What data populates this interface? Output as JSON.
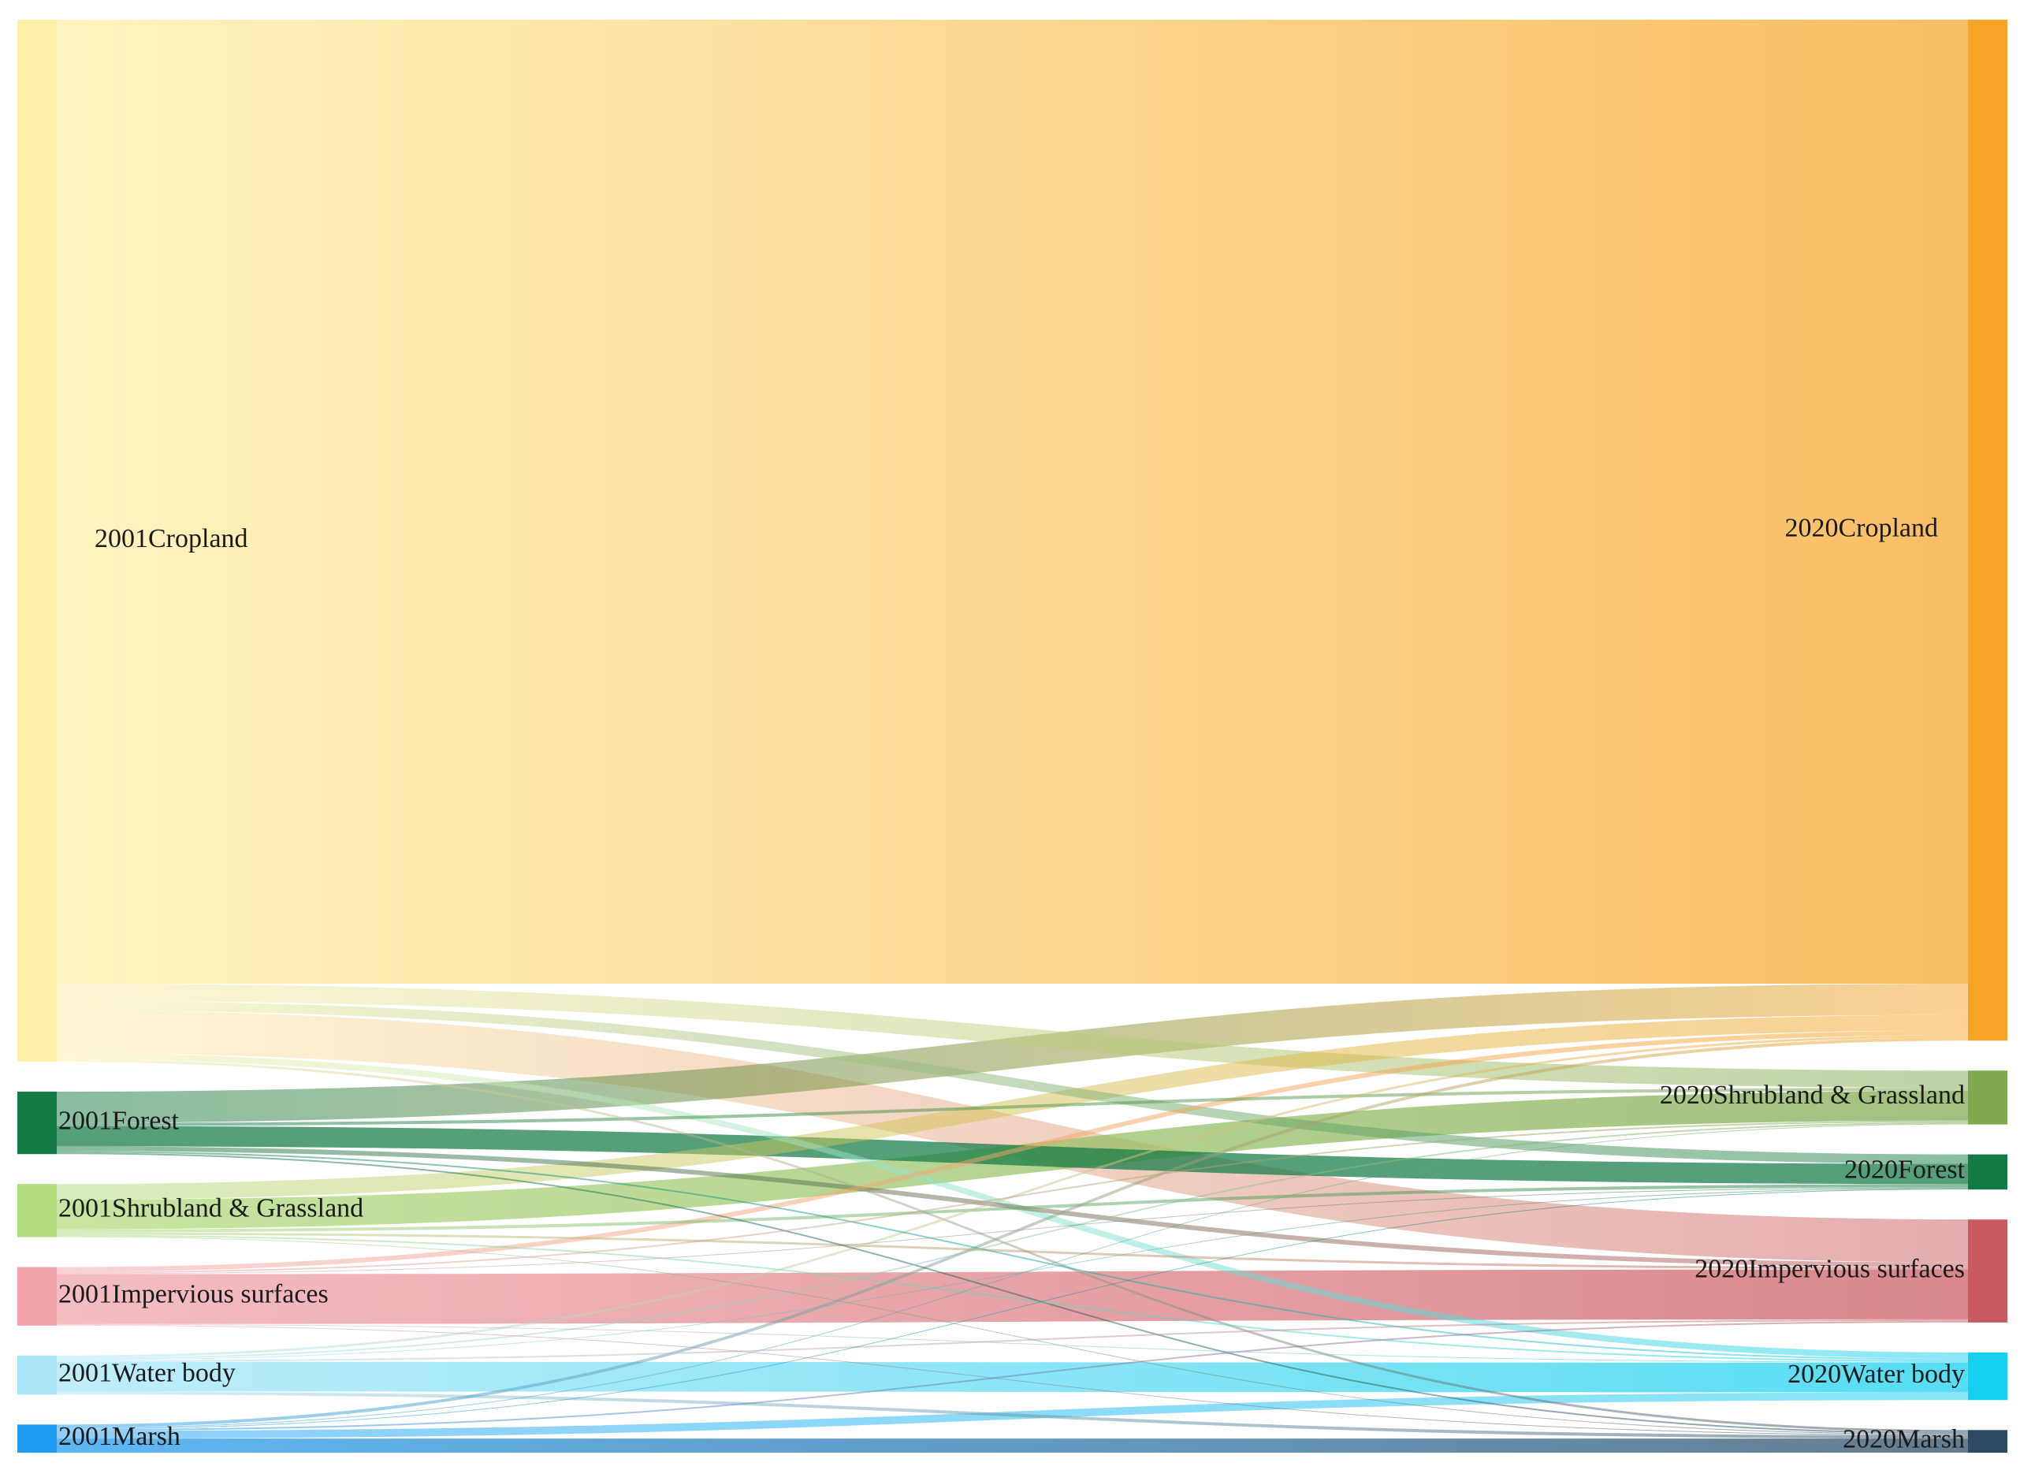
{
  "chart_data": {
    "type": "sankey",
    "title": "",
    "left_nodes": [
      {
        "id": "c01",
        "label": "2001Cropland",
        "color": "#fff0a8"
      },
      {
        "id": "f01",
        "label": "2001Forest",
        "color": "#137a45"
      },
      {
        "id": "s01",
        "label": "2001Shrubland & Grassland",
        "color": "#b2db7d"
      },
      {
        "id": "i01",
        "label": "2001Impervious surfaces",
        "color": "#f1a4ab"
      },
      {
        "id": "w01",
        "label": "2001Water body",
        "color": "#a8e6f7"
      },
      {
        "id": "m01",
        "label": "2001Marsh",
        "color": "#1e9cf2"
      }
    ],
    "right_nodes": [
      {
        "id": "c20",
        "label": "2020Cropland",
        "color": "#f6a427"
      },
      {
        "id": "s20",
        "label": "2020Shrubland & Grassland",
        "color": "#7ea94d"
      },
      {
        "id": "f20",
        "label": "2020Forest",
        "color": "#137a45"
      },
      {
        "id": "i20",
        "label": "2020Impervious surfaces",
        "color": "#c95a60"
      },
      {
        "id": "w20",
        "label": "2020Water body",
        "color": "#15d0ee"
      },
      {
        "id": "m20",
        "label": "2020Marsh",
        "color": "#2c4a64"
      }
    ],
    "links": [
      {
        "source": "c01",
        "target": "c20",
        "value": 1235
      },
      {
        "source": "c01",
        "target": "s20",
        "value": 22
      },
      {
        "source": "c01",
        "target": "f20",
        "value": 12
      },
      {
        "source": "c01",
        "target": "i20",
        "value": 55
      },
      {
        "source": "c01",
        "target": "w20",
        "value": 8
      },
      {
        "source": "c01",
        "target": "m20",
        "value": 3
      },
      {
        "source": "f01",
        "target": "c20",
        "value": 40
      },
      {
        "source": "f01",
        "target": "s20",
        "value": 4
      },
      {
        "source": "f01",
        "target": "f20",
        "value": 26
      },
      {
        "source": "f01",
        "target": "i20",
        "value": 6
      },
      {
        "source": "f01",
        "target": "w20",
        "value": 2
      },
      {
        "source": "f01",
        "target": "m20",
        "value": 2
      },
      {
        "source": "s01",
        "target": "c20",
        "value": 20
      },
      {
        "source": "s01",
        "target": "s20",
        "value": 38
      },
      {
        "source": "s01",
        "target": "f20",
        "value": 4
      },
      {
        "source": "s01",
        "target": "i20",
        "value": 3
      },
      {
        "source": "s01",
        "target": "w20",
        "value": 2
      },
      {
        "source": "s01",
        "target": "m20",
        "value": 1
      },
      {
        "source": "i01",
        "target": "c20",
        "value": 6
      },
      {
        "source": "i01",
        "target": "s20",
        "value": 2
      },
      {
        "source": "i01",
        "target": "f20",
        "value": 1
      },
      {
        "source": "i01",
        "target": "i20",
        "value": 64
      },
      {
        "source": "i01",
        "target": "w20",
        "value": 1
      },
      {
        "source": "i01",
        "target": "m20",
        "value": 1
      },
      {
        "source": "w01",
        "target": "c20",
        "value": 3
      },
      {
        "source": "w01",
        "target": "s20",
        "value": 2
      },
      {
        "source": "w01",
        "target": "f20",
        "value": 1
      },
      {
        "source": "w01",
        "target": "i20",
        "value": 2
      },
      {
        "source": "w01",
        "target": "w20",
        "value": 38
      },
      {
        "source": "w01",
        "target": "m20",
        "value": 4
      },
      {
        "source": "m01",
        "target": "c20",
        "value": 4
      },
      {
        "source": "m01",
        "target": "s20",
        "value": 1
      },
      {
        "source": "m01",
        "target": "f20",
        "value": 1
      },
      {
        "source": "m01",
        "target": "i20",
        "value": 2
      },
      {
        "source": "m01",
        "target": "w20",
        "value": 10
      },
      {
        "source": "m01",
        "target": "m20",
        "value": 18
      }
    ]
  }
}
